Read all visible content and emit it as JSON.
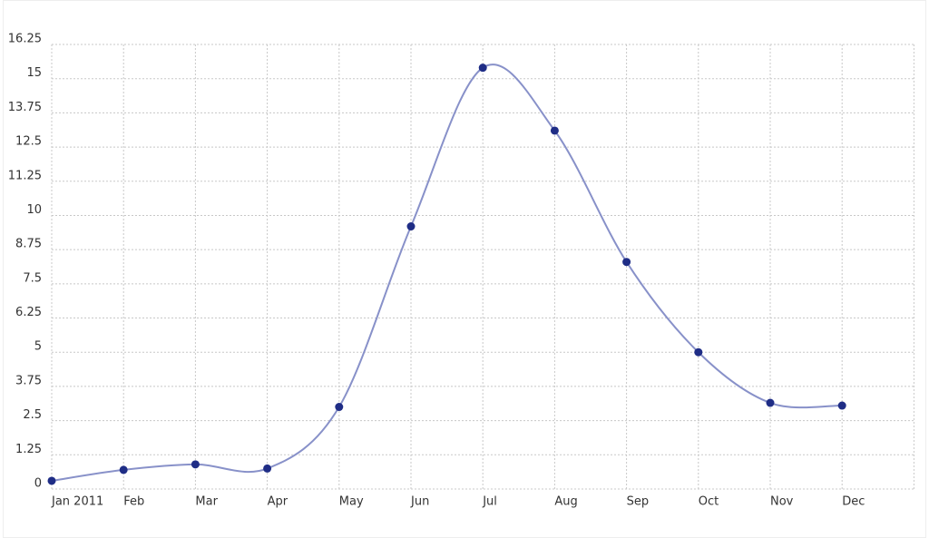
{
  "chart_data": {
    "type": "line",
    "categories": [
      "Jan 2011",
      "Feb",
      "Mar",
      "Apr",
      "May",
      "Jun",
      "Jul",
      "Aug",
      "Sep",
      "Oct",
      "Nov",
      "Dec"
    ],
    "series": [
      {
        "color": "#8891c9",
        "marker_color": "#1f2d86",
        "values": [
          0.3,
          0.7,
          0.9,
          0.75,
          3.0,
          9.6,
          15.4,
          13.1,
          8.3,
          5.0,
          3.15,
          3.05
        ]
      }
    ],
    "ylim": [
      0,
      16.25
    ],
    "yticks": [
      0,
      1.25,
      2.5,
      3.75,
      5,
      6.25,
      7.5,
      8.75,
      10,
      11.25,
      12.5,
      13.75,
      15,
      16.25
    ],
    "grid": true
  }
}
